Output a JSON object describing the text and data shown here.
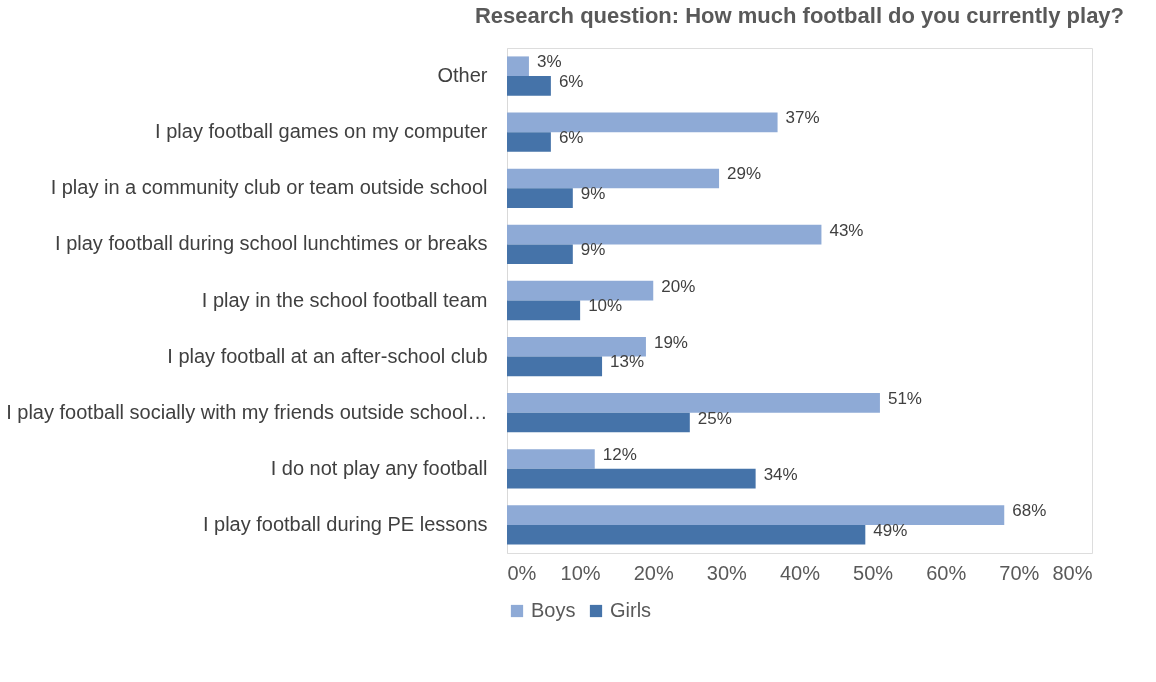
{
  "chart_data": {
    "type": "bar",
    "orientation": "horizontal",
    "title": "Research question: How much football do you currently play?",
    "categories": [
      "Other",
      "I play football games on my computer",
      "I play in a community club or team outside school",
      "I play football during school lunchtimes or breaks",
      "I play in the school football team",
      "I play football at an after-school club",
      "I play football socially with my friends outside school…",
      "I do not play any football",
      "I play football during PE lessons"
    ],
    "series": [
      {
        "name": "Boys",
        "color": "#8eaad6",
        "values": [
          3,
          37,
          29,
          43,
          20,
          19,
          51,
          12,
          68
        ],
        "value_labels": [
          "3%",
          "37%",
          "29%",
          "43%",
          "20%",
          "19%",
          "51%",
          "12%",
          "68%"
        ]
      },
      {
        "name": "Girls",
        "color": "#4573a9",
        "values": [
          6,
          6,
          9,
          9,
          10,
          13,
          25,
          34,
          49
        ],
        "value_labels": [
          "6%",
          "6%",
          "9%",
          "9%",
          "10%",
          "13%",
          "25%",
          "34%",
          "49%"
        ]
      }
    ],
    "xlim": [
      0,
      80
    ],
    "xticks": [
      {
        "value": 0,
        "label": "0%"
      },
      {
        "value": 10,
        "label": "10%"
      },
      {
        "value": 20,
        "label": "20%"
      },
      {
        "value": 30,
        "label": "30%"
      },
      {
        "value": 40,
        "label": "40%"
      },
      {
        "value": 50,
        "label": "50%"
      },
      {
        "value": 60,
        "label": "60%"
      },
      {
        "value": 70,
        "label": "70%"
      },
      {
        "value": 80,
        "label": "80%"
      }
    ],
    "grid": false,
    "legend": "bottom"
  }
}
